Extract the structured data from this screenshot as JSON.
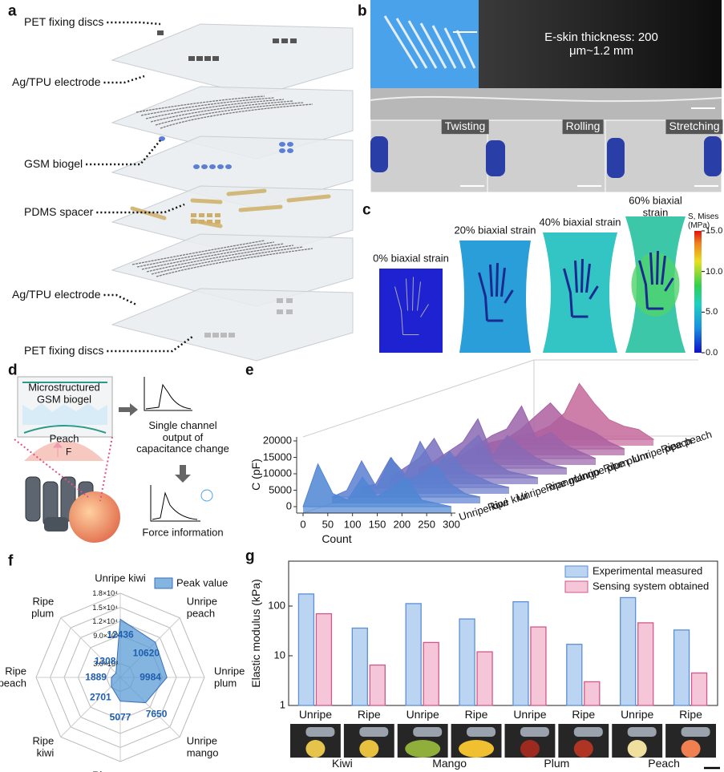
{
  "panel_labels": [
    "a",
    "b",
    "c",
    "d",
    "e",
    "f",
    "g"
  ],
  "panel_a": {
    "layer_labels": [
      "PET fixing discs",
      "Ag/TPU electrode",
      "GSM biogel",
      "PDMS spacer",
      "Ag/TPU electrode",
      "PET fixing discs"
    ]
  },
  "panel_b": {
    "thickness_label": "E-skin thickness: 200 μm~1.2 mm",
    "deformation_labels": [
      "Twisting",
      "Rolling",
      "Stretching"
    ]
  },
  "panel_c": {
    "strain_labels": [
      "0% biaxial strain",
      "20% biaxial strain",
      "40% biaxial strain",
      "60% biaxial strain"
    ],
    "colorbar_title": "S, Mises\n(MPa)",
    "colorbar_lim": [
      0,
      15
    ],
    "colorbar_ticks": [
      {
        "value": 0,
        "label": "0.0"
      },
      {
        "value": 5,
        "label": "5.0"
      },
      {
        "value": 10,
        "label": "10.0"
      },
      {
        "value": 15,
        "label": "15.0"
      }
    ]
  },
  "panel_d": {
    "sensor_label": "Microstructured\nGSM biogel",
    "object_label": "Peach",
    "force_label": "F",
    "output_label": "Single channel\noutput of\ncapacitance change",
    "force_info_label": "Force information"
  },
  "chart_data": [
    {
      "type": "waterfall",
      "xlabel": "Count",
      "ylabel": "C (pF)",
      "x": [
        0,
        30,
        60,
        90,
        120,
        150,
        180,
        210,
        240,
        270,
        300
      ],
      "xlim": [
        0,
        300
      ],
      "xticks": [
        0,
        50,
        100,
        150,
        200,
        250,
        300
      ],
      "ylim": [
        0,
        20000
      ],
      "yticks": [
        0,
        5000,
        10000,
        15000,
        20000
      ],
      "series": [
        {
          "name": "Unripe kiwi",
          "color": "#4f86d4",
          "values": [
            0,
            13000,
            4000,
            2000,
            9000,
            3000,
            6000,
            9000,
            2000,
            1000,
            0
          ]
        },
        {
          "name": "Ripe kiwi",
          "color": "#5b7fd0",
          "values": [
            0,
            2000,
            11000,
            3000,
            12000,
            5000,
            7000,
            10000,
            4000,
            1000,
            0
          ]
        },
        {
          "name": "Unripe mango",
          "color": "#6a78c8",
          "values": [
            0,
            1000,
            9000,
            4000,
            14000,
            6000,
            11000,
            5000,
            3000,
            1000,
            0
          ]
        },
        {
          "name": "Ripe mango",
          "color": "#7a70be",
          "values": [
            0,
            3000,
            6000,
            12000,
            4000,
            9000,
            13000,
            5000,
            2000,
            1000,
            0
          ]
        },
        {
          "name": "Unripe plum",
          "color": "#8a69b4",
          "values": [
            0,
            2000,
            5000,
            8000,
            15000,
            4000,
            10000,
            6000,
            3000,
            1000,
            0
          ]
        },
        {
          "name": "Ripe plum",
          "color": "#9a63a9",
          "values": [
            0,
            1000,
            4000,
            7000,
            9000,
            16000,
            6000,
            8000,
            4000,
            2000,
            0
          ]
        },
        {
          "name": "Unripe peach",
          "color": "#ad5f9f",
          "values": [
            0,
            2000,
            3000,
            6000,
            10000,
            14000,
            9000,
            7000,
            5000,
            2000,
            0
          ]
        },
        {
          "name": "Ripe peach",
          "color": "#c4689a",
          "values": [
            0,
            1000,
            2000,
            4000,
            8000,
            17000,
            11000,
            6000,
            4000,
            3000,
            0
          ]
        }
      ]
    },
    {
      "type": "radar",
      "legend": "Peak value",
      "color": "#5b9bd5",
      "categories": [
        "Unripe kiwi",
        "Unripe\npeach",
        "Unripe\nplum",
        "Unripe\nmango",
        "Ripe mango",
        "Ripe\nkiwi",
        "Ripe\npeach",
        "Ripe\nplum"
      ],
      "values": [
        12436,
        10620,
        9984,
        7650,
        5077,
        2701,
        1889,
        1308
      ],
      "rlim": [
        0,
        18000
      ],
      "rticks": [
        {
          "value": 3000,
          "label": "3.0×10³"
        },
        {
          "value": 9000,
          "label": "9.0×10³"
        },
        {
          "value": 12000,
          "label": "1.2×10⁴"
        },
        {
          "value": 15000,
          "label": "1.5×10⁴"
        },
        {
          "value": 18000,
          "label": "1.8×10⁴"
        }
      ]
    },
    {
      "type": "bar",
      "ylabel": "Elastic modulus (kPa)",
      "log": true,
      "categories": [
        "Unripe",
        "Ripe",
        "Unripe",
        "Ripe",
        "Unripe",
        "Ripe",
        "Unripe",
        "Ripe"
      ],
      "groups": [
        "Kiwi",
        "Mango",
        "Plum",
        "Peach"
      ],
      "ylim": [
        1,
        800
      ],
      "yticks": [
        1,
        10,
        100
      ],
      "legend": "top-right",
      "series": [
        {
          "name": "Experimental measured",
          "color": "#5b8fd6",
          "values": [
            175,
            36,
            112,
            55,
            122,
            17,
            148,
            33
          ]
        },
        {
          "name": "Sensing system obtained",
          "color": "#d2578c",
          "values": [
            70,
            6.5,
            18.5,
            12,
            38,
            3,
            46,
            4.5
          ]
        }
      ]
    }
  ]
}
